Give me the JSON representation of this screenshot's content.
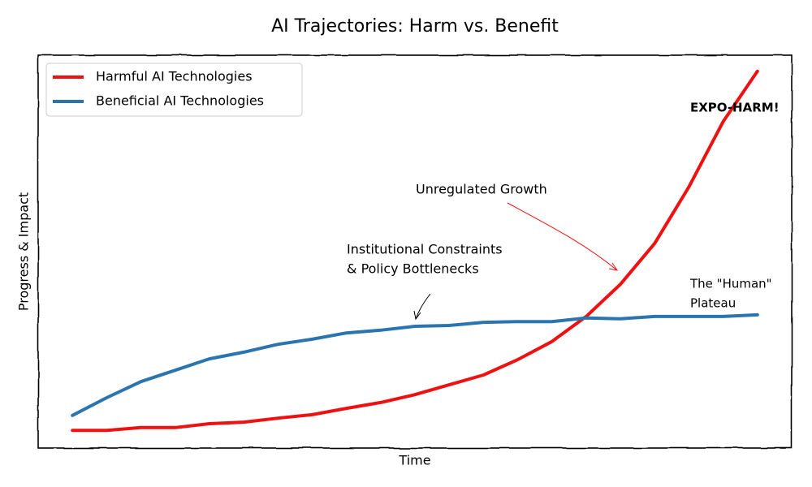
{
  "chart_data": {
    "type": "line",
    "title": "AI Trajectories: Harm vs. Benefit",
    "xlabel": "Time",
    "ylabel": "Progress & Impact",
    "x": [
      0,
      0.5,
      1,
      1.5,
      2,
      2.5,
      3,
      3.5,
      4,
      4.5,
      5,
      5.5,
      6,
      6.5,
      7,
      7.5,
      8,
      8.5,
      9,
      9.5,
      10
    ],
    "xlim": [
      -0.5,
      10.5
    ],
    "ylim": [
      0,
      100
    ],
    "legend": "upper left",
    "series": [
      {
        "name": "Harmful AI Technologies",
        "color": "#ee1111",
        "values": [
          4.5,
          4.5,
          5.2,
          5.2,
          6.2,
          6.6,
          7.6,
          8.5,
          10.1,
          11.6,
          13.6,
          16.1,
          18.6,
          22.5,
          27.1,
          33.5,
          41.7,
          52.1,
          66.5,
          83.1,
          95.9
        ]
      },
      {
        "name": "Beneficial AI Technologies",
        "color": "#2a74b0",
        "values": [
          8.3,
          12.8,
          16.9,
          19.8,
          22.7,
          24.4,
          26.4,
          27.7,
          29.3,
          30.0,
          31.0,
          31.2,
          32.0,
          32.2,
          32.2,
          33.1,
          32.9,
          33.5,
          33.5,
          33.5,
          33.9
        ]
      }
    ],
    "annotations": [
      {
        "text": [
          "Unregulated Growth"
        ],
        "color": "#000000"
      },
      {
        "text": [
          "Institutional Constraints",
          "& Policy Bottlenecks"
        ],
        "color": "#000000"
      },
      {
        "text": [
          "EXPO-HARM!"
        ],
        "color": "#ee1111"
      },
      {
        "text": [
          "The \"Human\"",
          "Plateau"
        ],
        "color": "#2a74b0"
      }
    ]
  }
}
